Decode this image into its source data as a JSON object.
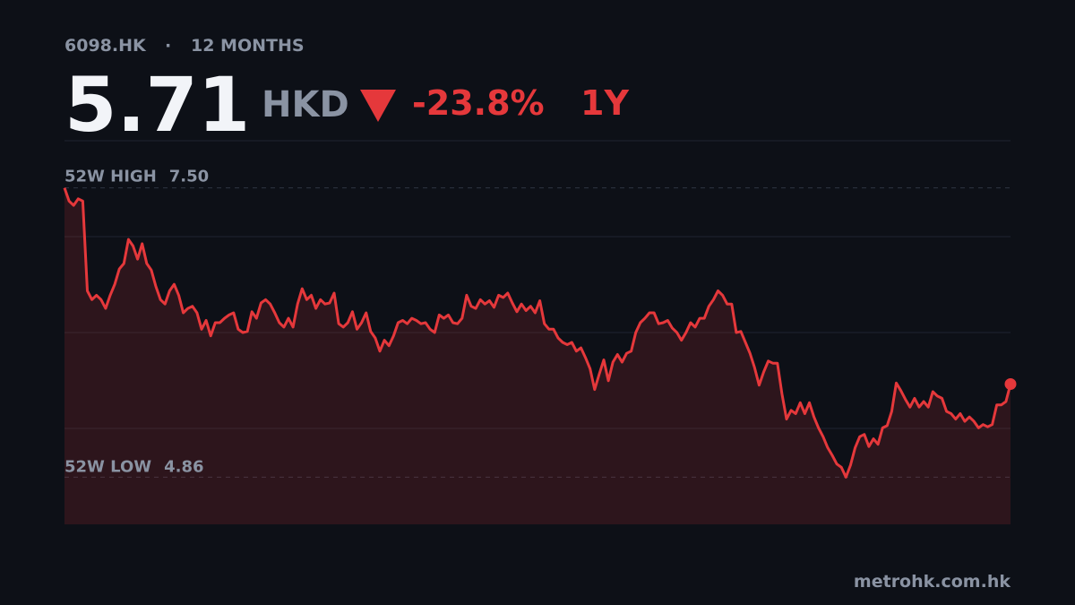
{
  "chart_data": {
    "type": "line",
    "ticker": "6098.HK",
    "period": "12 MONTHS",
    "price": 5.71,
    "currency": "HKD",
    "change": "-23.8%",
    "range": "1Y",
    "high_label": "52W HIGH",
    "high": {
      "value": 7.5,
      "label": "7.50"
    },
    "low_label": "52W LOW",
    "low": 4.86,
    "source": "metrohk.com.hk",
    "color": "#e5383b",
    "ylim": [
      4.43,
      7.93
    ],
    "values": [
      7.5,
      7.38,
      7.34,
      7.4,
      7.38,
      6.56,
      6.48,
      6.52,
      6.48,
      6.4,
      6.52,
      6.62,
      6.76,
      6.81,
      7.03,
      6.97,
      6.85,
      6.99,
      6.81,
      6.75,
      6.6,
      6.48,
      6.44,
      6.56,
      6.62,
      6.52,
      6.36,
      6.4,
      6.42,
      6.36,
      6.21,
      6.29,
      6.15,
      6.27,
      6.27,
      6.31,
      6.34,
      6.36,
      6.21,
      6.18,
      6.19,
      6.37,
      6.31,
      6.45,
      6.48,
      6.44,
      6.36,
      6.27,
      6.23,
      6.31,
      6.23,
      6.44,
      6.58,
      6.48,
      6.52,
      6.4,
      6.48,
      6.44,
      6.45,
      6.54,
      6.26,
      6.23,
      6.27,
      6.37,
      6.21,
      6.27,
      6.36,
      6.19,
      6.13,
      6.01,
      6.11,
      6.06,
      6.15,
      6.27,
      6.29,
      6.26,
      6.31,
      6.29,
      6.26,
      6.27,
      6.21,
      6.18,
      6.34,
      6.31,
      6.34,
      6.27,
      6.26,
      6.31,
      6.52,
      6.42,
      6.4,
      6.48,
      6.44,
      6.47,
      6.41,
      6.52,
      6.5,
      6.54,
      6.45,
      6.37,
      6.44,
      6.38,
      6.42,
      6.36,
      6.47,
      6.26,
      6.21,
      6.21,
      6.13,
      6.09,
      6.07,
      6.09,
      6.01,
      6.04,
      5.95,
      5.85,
      5.66,
      5.8,
      5.93,
      5.74,
      5.91,
      5.98,
      5.91,
      5.99,
      6.01,
      6.18,
      6.27,
      6.31,
      6.36,
      6.36,
      6.26,
      6.27,
      6.29,
      6.22,
      6.18,
      6.11,
      6.18,
      6.27,
      6.23,
      6.31,
      6.31,
      6.42,
      6.48,
      6.56,
      6.52,
      6.44,
      6.44,
      6.18,
      6.19,
      6.09,
      5.99,
      5.86,
      5.7,
      5.82,
      5.92,
      5.9,
      5.9,
      5.62,
      5.39,
      5.47,
      5.44,
      5.54,
      5.44,
      5.54,
      5.41,
      5.31,
      5.23,
      5.13,
      5.06,
      4.98,
      4.95,
      4.86,
      4.97,
      5.13,
      5.23,
      5.25,
      5.14,
      5.21,
      5.16,
      5.31,
      5.33,
      5.46,
      5.72,
      5.65,
      5.57,
      5.5,
      5.58,
      5.5,
      5.55,
      5.5,
      5.64,
      5.6,
      5.58,
      5.46,
      5.44,
      5.39,
      5.44,
      5.37,
      5.41,
      5.37,
      5.31,
      5.34,
      5.32,
      5.34,
      5.52,
      5.52,
      5.55,
      5.71
    ]
  }
}
